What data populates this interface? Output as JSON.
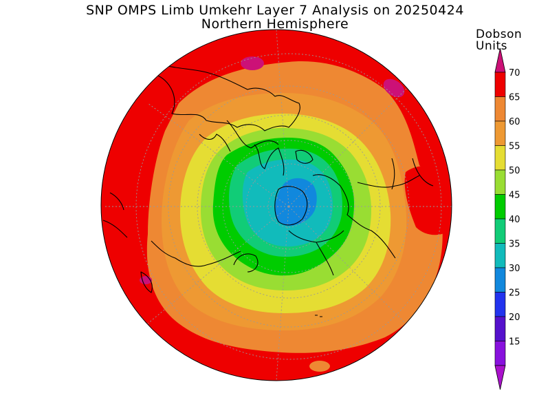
{
  "title": {
    "line1": "SNP OMPS Limb Umkehr Layer 7 Analysis on 20250424",
    "line2": "Northern Hemisphere"
  },
  "colorbar": {
    "units_line1": "Dobson",
    "units_line2": "Units",
    "levels": [
      {
        "label": "70",
        "color": "#ee0000"
      },
      {
        "label": "65",
        "color": "#ee8833"
      },
      {
        "label": "60",
        "color": "#ee9933"
      },
      {
        "label": "55",
        "color": "#e5dd33"
      },
      {
        "label": "50",
        "color": "#99dd33"
      },
      {
        "label": "45",
        "color": "#00cc00"
      },
      {
        "label": "40",
        "color": "#11cc77"
      },
      {
        "label": "35",
        "color": "#11bbbb"
      },
      {
        "label": "30",
        "color": "#1188dd"
      },
      {
        "label": "25",
        "color": "#2233ee"
      },
      {
        "label": "20",
        "color": "#5511cc"
      },
      {
        "label": "15",
        "color": "#8811dd"
      }
    ],
    "top_arrow_color": "#cc1177",
    "bottom_arrow_color": "#aa11cc"
  },
  "map": {
    "projection": "polar-stereographic-north",
    "field_colors": {
      "max": "#cc1177",
      "red": "#ee0000",
      "orange": "#ee8833",
      "light_orange": "#ee9933",
      "yellow": "#e5dd33",
      "yellow_green": "#99dd33",
      "green": "#00cc00",
      "sea_green": "#11cc77",
      "cyan": "#11bbbb",
      "blue": "#1188dd"
    }
  }
}
